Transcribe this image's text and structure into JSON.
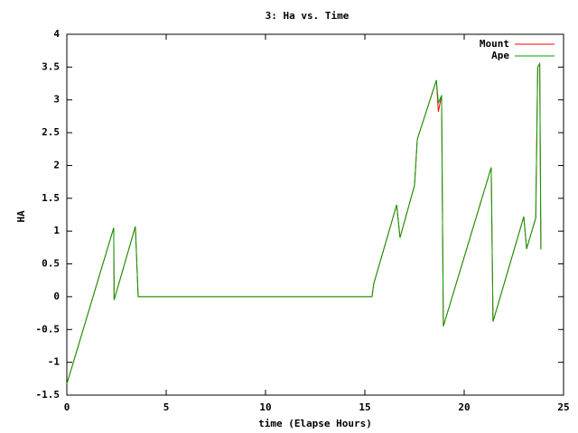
{
  "chart_data": {
    "type": "line",
    "title": "3: Ha vs. Time",
    "x_label": "time (Elapse Hours)",
    "y_label": "HA",
    "x": [
      0,
      2.36,
      2.38,
      3.45,
      3.59,
      15.36,
      15.45,
      16.6,
      16.77,
      17.5,
      17.64,
      18.6,
      18.7,
      18.86,
      18.95,
      21.36,
      21.45,
      23.0,
      23.14,
      23.6,
      23.7,
      23.8,
      23.86
    ],
    "series": [
      {
        "name": "Mount",
        "color": "#ff0000",
        "values": [
          -1.33,
          1.05,
          -0.05,
          1.07,
          0,
          0,
          0.2,
          1.4,
          0.9,
          1.7,
          2.4,
          3.3,
          2.82,
          3.07,
          -0.45,
          1.97,
          -0.38,
          1.22,
          0.73,
          1.2,
          3.5,
          3.55,
          0.72
        ]
      },
      {
        "name": "Ape",
        "color": "#00a000",
        "values": [
          -1.33,
          1.05,
          -0.05,
          1.07,
          0,
          0,
          0.2,
          1.4,
          0.9,
          1.7,
          2.4,
          3.3,
          2.95,
          3.07,
          -0.45,
          1.97,
          -0.38,
          1.22,
          0.73,
          1.2,
          3.5,
          3.55,
          0.72
        ]
      }
    ],
    "xlim": [
      0,
      25
    ],
    "xticks": [
      0,
      5,
      10,
      15,
      20,
      25
    ],
    "ylim": [
      -1.5,
      4
    ],
    "yticks": [
      -1.5,
      -1,
      -0.5,
      0,
      0.5,
      1,
      1.5,
      2,
      2.5,
      3,
      3.5,
      4
    ],
    "grid": false,
    "legend": "top-right"
  }
}
